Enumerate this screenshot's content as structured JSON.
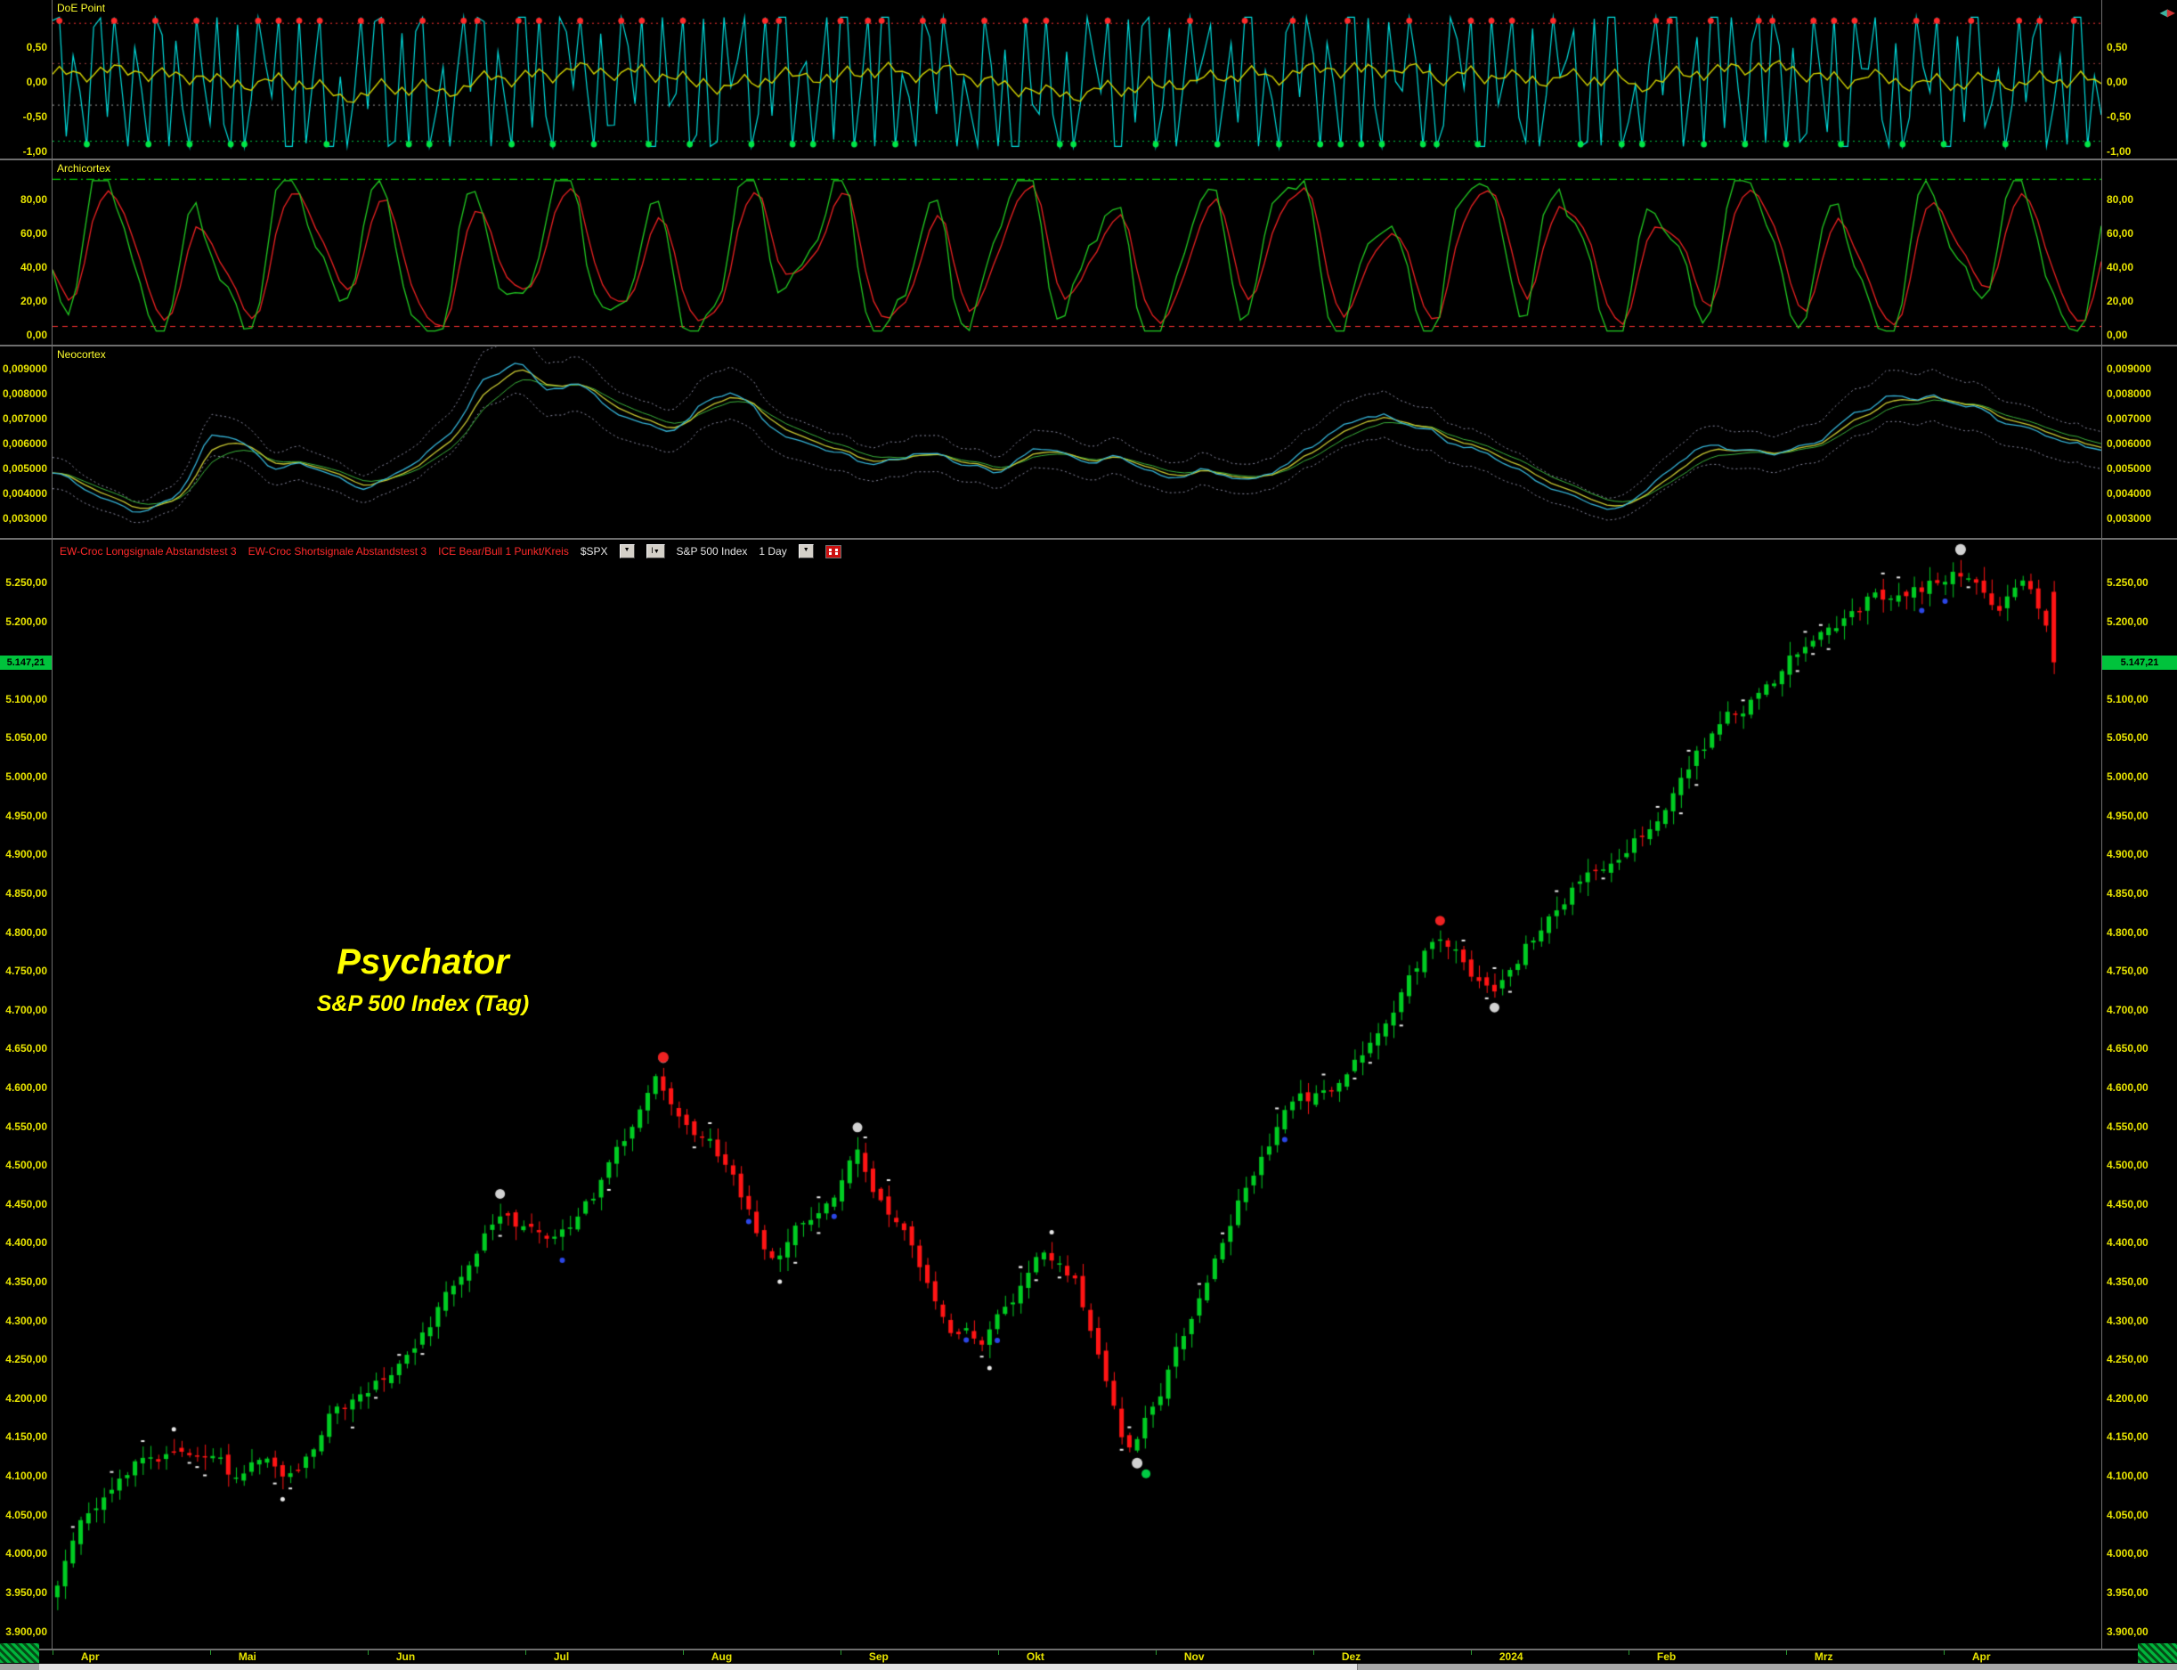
{
  "icons": {
    "dropdown": "▼",
    "pan_left": "◀",
    "pan_right": "▶",
    "info": "I"
  },
  "price_header": {
    "legends": [
      {
        "label": "EW-Croc Longsignale Abstandstest 3",
        "color": "#ff2a2a"
      },
      {
        "label": "EW-Croc Shortsignale Abstandstest 3",
        "color": "#ff2a2a"
      },
      {
        "label": "ICE Bear/Bull 1 Punkt/Kreis",
        "color": "#ff2a2a"
      }
    ],
    "symbol": "$SPX",
    "instrument": "S&P 500 Index",
    "interval": "1 Day"
  },
  "watermark": {
    "title": "Psychator",
    "subtitle": "S&P 500 Index (Tag)",
    "color": "#ffff00"
  },
  "chart_data": [
    {
      "type": "line",
      "title": "DoE Point",
      "ylim": [
        -1.08,
        1.18
      ],
      "y_ticks": [
        {
          "label": "0,50",
          "value": 0.5
        },
        {
          "label": "0,00",
          "value": 0.0
        },
        {
          "label": "-0,50",
          "value": -0.5
        },
        {
          "label": "-1,00",
          "value": -1.0
        }
      ],
      "series": [
        {
          "name": "DoE oscillator",
          "color": "#00dcdc",
          "range": [
            -0.93,
            0.93
          ],
          "character": "fast oscillator saturating at extremes"
        },
        {
          "name": "DoE smoothed",
          "color": "#d2d200",
          "range": [
            -0.6,
            0.6
          ]
        }
      ],
      "markers": [
        {
          "name": "sell-signal-dots",
          "color": "#ff2a2a",
          "level": 0.88
        },
        {
          "name": "buy-signal-dots",
          "color": "#00e646",
          "level": -0.9
        }
      ],
      "thresholds": [
        {
          "value": 0.85,
          "color": "#ff3232",
          "style": "dotted"
        },
        {
          "value": 0.27,
          "color": "#a04040",
          "style": "dotted"
        },
        {
          "value": -0.33,
          "color": "#9a9a9a",
          "style": "dotted"
        },
        {
          "value": -0.85,
          "color": "#00c846",
          "style": "dotted"
        }
      ],
      "legend_position": "top-left",
      "grid": false,
      "gen": {
        "seed": 7,
        "n": 300
      }
    },
    {
      "type": "line",
      "title": "Archicortex",
      "ylim": [
        -5,
        103
      ],
      "y_ticks": [
        {
          "label": "80,00",
          "value": 80
        },
        {
          "label": "60,00",
          "value": 60
        },
        {
          "label": "40,00",
          "value": 40
        },
        {
          "label": "20,00",
          "value": 20
        },
        {
          "label": "0,00",
          "value": 0
        }
      ],
      "series": [
        {
          "name": "Archicortex fast",
          "color": "#22cc22",
          "range": [
            2,
            91
          ]
        },
        {
          "name": "Archicortex slow",
          "color": "#ee2222",
          "range": [
            2,
            91
          ]
        }
      ],
      "thresholds": [
        {
          "value": 92,
          "color": "#00cc00",
          "style": "dashdot"
        },
        {
          "value": 5,
          "color": "#ff3232",
          "style": "dashed"
        }
      ],
      "grid": false,
      "gen": {
        "seed": 21,
        "n": 258
      }
    },
    {
      "type": "line",
      "title": "Neocortex",
      "ylim": [
        0.00228,
        0.00989
      ],
      "y_ticks": [
        {
          "label": "0,009000",
          "value": 0.009
        },
        {
          "label": "0,008000",
          "value": 0.008
        },
        {
          "label": "0,007000",
          "value": 0.007
        },
        {
          "label": "0,006000",
          "value": 0.006
        },
        {
          "label": "0,005000",
          "value": 0.005
        },
        {
          "label": "0,004000",
          "value": 0.004
        },
        {
          "label": "0,003000",
          "value": 0.003
        }
      ],
      "series": [
        {
          "name": "Neocortex",
          "color": "#35b4d8"
        },
        {
          "name": "Neocortex signal",
          "color": "#c8c832"
        },
        {
          "name": "Neocortex slow",
          "color": "#3cb43c"
        },
        {
          "name": "Envelope +/-13%",
          "color": "#8a8aa0",
          "style": "dotted"
        }
      ],
      "anchors": [
        [
          0,
          0.0048
        ],
        [
          0.02,
          0.0038
        ],
        [
          0.04,
          0.0031
        ],
        [
          0.06,
          0.004
        ],
        [
          0.075,
          0.0068
        ],
        [
          0.09,
          0.006
        ],
        [
          0.105,
          0.0048
        ],
        [
          0.12,
          0.0052
        ],
        [
          0.135,
          0.0046
        ],
        [
          0.15,
          0.0041
        ],
        [
          0.165,
          0.0048
        ],
        [
          0.18,
          0.0055
        ],
        [
          0.195,
          0.007
        ],
        [
          0.21,
          0.009
        ],
        [
          0.225,
          0.0092
        ],
        [
          0.24,
          0.0078
        ],
        [
          0.255,
          0.0085
        ],
        [
          0.27,
          0.0072
        ],
        [
          0.285,
          0.0068
        ],
        [
          0.3,
          0.0062
        ],
        [
          0.315,
          0.0078
        ],
        [
          0.33,
          0.0082
        ],
        [
          0.345,
          0.0068
        ],
        [
          0.36,
          0.006
        ],
        [
          0.38,
          0.0056
        ],
        [
          0.4,
          0.005
        ],
        [
          0.42,
          0.0058
        ],
        [
          0.44,
          0.0052
        ],
        [
          0.46,
          0.0048
        ],
        [
          0.48,
          0.006
        ],
        [
          0.5,
          0.0052
        ],
        [
          0.52,
          0.0055
        ],
        [
          0.54,
          0.0045
        ],
        [
          0.56,
          0.005
        ],
        [
          0.58,
          0.0044
        ],
        [
          0.6,
          0.0052
        ],
        [
          0.62,
          0.0065
        ],
        [
          0.64,
          0.0072
        ],
        [
          0.66,
          0.0068
        ],
        [
          0.68,
          0.006
        ],
        [
          0.7,
          0.0055
        ],
        [
          0.72,
          0.0045
        ],
        [
          0.74,
          0.0038
        ],
        [
          0.76,
          0.0032
        ],
        [
          0.78,
          0.0045
        ],
        [
          0.8,
          0.006
        ],
        [
          0.82,
          0.0058
        ],
        [
          0.84,
          0.0055
        ],
        [
          0.86,
          0.0062
        ],
        [
          0.88,
          0.0075
        ],
        [
          0.9,
          0.008
        ],
        [
          0.92,
          0.0078
        ],
        [
          0.94,
          0.0072
        ],
        [
          0.96,
          0.0065
        ],
        [
          0.98,
          0.006
        ],
        [
          1,
          0.0058
        ]
      ],
      "grid": false,
      "gen": {
        "seed": 33,
        "n": 258
      }
    },
    {
      "type": "candlestick",
      "symbol": "$SPX",
      "name": "S&P 500 Index",
      "interval": "1 Day",
      "ylim": [
        3880,
        5305
      ],
      "y_tick_step": 50,
      "last_price": 5147.21,
      "last_price_label": "5.147,21",
      "up_color": "#00cc22",
      "down_color": "#ff1414",
      "y_ticks": [
        {
          "label": "5.250,00",
          "value": 5250
        },
        {
          "label": "5.200,00",
          "value": 5200
        },
        {
          "label": "5.150,00",
          "value": 5150
        },
        {
          "label": "5.100,00",
          "value": 5100
        },
        {
          "label": "5.050,00",
          "value": 5050
        },
        {
          "label": "5.000,00",
          "value": 5000
        },
        {
          "label": "4.950,00",
          "value": 4950
        },
        {
          "label": "4.900,00",
          "value": 4900
        },
        {
          "label": "4.850,00",
          "value": 4850
        },
        {
          "label": "4.800,00",
          "value": 4800
        },
        {
          "label": "4.750,00",
          "value": 4750
        },
        {
          "label": "4.700,00",
          "value": 4700
        },
        {
          "label": "4.650,00",
          "value": 4650
        },
        {
          "label": "4.600,00",
          "value": 4600
        },
        {
          "label": "4.550,00",
          "value": 4550
        },
        {
          "label": "4.500,00",
          "value": 4500
        },
        {
          "label": "4.450,00",
          "value": 4450
        },
        {
          "label": "4.400,00",
          "value": 4400
        },
        {
          "label": "4.350,00",
          "value": 4350
        },
        {
          "label": "4.300,00",
          "value": 4300
        },
        {
          "label": "4.250,00",
          "value": 4250
        },
        {
          "label": "4.200,00",
          "value": 4200
        },
        {
          "label": "4.150,00",
          "value": 4150
        },
        {
          "label": "4.100,00",
          "value": 4100
        },
        {
          "label": "4.050,00",
          "value": 4050
        },
        {
          "label": "4.000,00",
          "value": 4000
        },
        {
          "label": "3.950,00",
          "value": 3950
        },
        {
          "label": "3.900,00",
          "value": 3900
        }
      ],
      "x_months": [
        "Apr",
        "Mai",
        "Jun",
        "Jul",
        "Aug",
        "Sep",
        "Okt",
        "Nov",
        "Dez",
        "2024",
        "Feb",
        "Mrz",
        "Apr"
      ],
      "anchors": [
        [
          0,
          3960
        ],
        [
          0.015,
          4050
        ],
        [
          0.04,
          4130
        ],
        [
          0.077,
          4150
        ],
        [
          0.09,
          4100
        ],
        [
          0.105,
          4135
        ],
        [
          0.12,
          4110
        ],
        [
          0.135,
          4180
        ],
        [
          0.154,
          4205
        ],
        [
          0.17,
          4225
        ],
        [
          0.19,
          4305
        ],
        [
          0.21,
          4390
        ],
        [
          0.225,
          4445
        ],
        [
          0.245,
          4410
        ],
        [
          0.27,
          4470
        ],
        [
          0.29,
          4565
        ],
        [
          0.3,
          4605
        ],
        [
          0.315,
          4560
        ],
        [
          0.33,
          4515
        ],
        [
          0.345,
          4440
        ],
        [
          0.36,
          4370
        ],
        [
          0.375,
          4430
        ],
        [
          0.39,
          4455
        ],
        [
          0.4,
          4510
        ],
        [
          0.415,
          4450
        ],
        [
          0.43,
          4380
        ],
        [
          0.45,
          4300
        ],
        [
          0.465,
          4285
        ],
        [
          0.48,
          4335
        ],
        [
          0.495,
          4380
        ],
        [
          0.51,
          4355
        ],
        [
          0.52,
          4250
        ],
        [
          0.535,
          4125
        ],
        [
          0.55,
          4190
        ],
        [
          0.565,
          4285
        ],
        [
          0.58,
          4395
        ],
        [
          0.6,
          4500
        ],
        [
          0.615,
          4560
        ],
        [
          0.635,
          4585
        ],
        [
          0.655,
          4650
        ],
        [
          0.675,
          4725
        ],
        [
          0.69,
          4780
        ],
        [
          0.705,
          4745
        ],
        [
          0.72,
          4725
        ],
        [
          0.735,
          4785
        ],
        [
          0.755,
          4855
        ],
        [
          0.77,
          4890
        ],
        [
          0.79,
          4930
        ],
        [
          0.81,
          4990
        ],
        [
          0.83,
          5055
        ],
        [
          0.85,
          5095
        ],
        [
          0.87,
          5150
        ],
        [
          0.89,
          5200
        ],
        [
          0.91,
          5240
        ],
        [
          0.925,
          5225
        ],
        [
          0.945,
          5252
        ],
        [
          0.958,
          5264
        ],
        [
          0.972,
          5205
        ],
        [
          0.985,
          5248
        ],
        [
          1,
          5150
        ]
      ],
      "signal_markers": {
        "gray_circle": "#d2d2d2",
        "red_circle": "#ee2222",
        "green_circle": "#00cc44",
        "blue_dot": "#2b46e6",
        "orange_circle": "#e08822",
        "white_tick": "#e8e8e8"
      },
      "grid": false,
      "gen": {
        "seed": 55,
        "n": 258
      }
    }
  ]
}
